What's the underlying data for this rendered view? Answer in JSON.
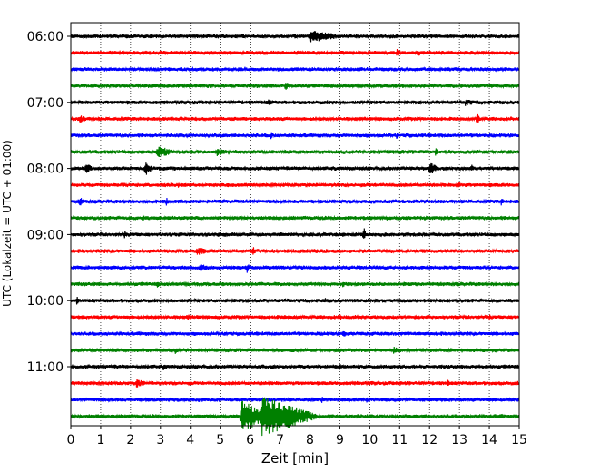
{
  "chart_data": {
    "type": "line",
    "xlabel": "Zeit  [min]",
    "ylabel": "UTC (Lokalzeit = UTC + 01:00)",
    "xlim": [
      0,
      15
    ],
    "x_ticks": [
      "0",
      "1",
      "2",
      "3",
      "4",
      "5",
      "6",
      "7",
      "8",
      "9",
      "10",
      "11",
      "12",
      "13",
      "14",
      "15"
    ],
    "y_ticks": [
      "06:00",
      "07:00",
      "08:00",
      "09:00",
      "10:00",
      "11:00"
    ],
    "grid": {
      "vertical_dotted": true
    },
    "trace_interval_minutes": 15,
    "start_time": "06:00",
    "end_time": "12:00",
    "colors_cycle": [
      "#000000",
      "#ff0000",
      "#0000ff",
      "#008000"
    ],
    "traces": [
      {
        "start": "06:00",
        "color": "#000000",
        "events": [
          {
            "t": 8.0,
            "amp": 7,
            "dur": 1.2
          }
        ]
      },
      {
        "start": "06:15",
        "color": "#ff0000",
        "events": [
          {
            "t": 1.7,
            "amp": 3,
            "dur": 0.1
          },
          {
            "t": 10.9,
            "amp": 5,
            "dur": 0.2
          },
          {
            "t": 11.6,
            "amp": 4,
            "dur": 0.2
          }
        ]
      },
      {
        "start": "06:30",
        "color": "#0000ff",
        "events": [
          {
            "t": 5.6,
            "amp": 3,
            "dur": 0.5
          }
        ]
      },
      {
        "start": "06:45",
        "color": "#008000",
        "events": [
          {
            "t": 7.2,
            "amp": 7,
            "dur": 0.1
          }
        ]
      },
      {
        "start": "07:00",
        "color": "#000000",
        "events": [
          {
            "t": 6.6,
            "amp": 4,
            "dur": 0.3
          },
          {
            "t": 13.2,
            "amp": 4,
            "dur": 0.5
          }
        ]
      },
      {
        "start": "07:15",
        "color": "#ff0000",
        "events": [
          {
            "t": 0.3,
            "amp": 5,
            "dur": 0.3
          },
          {
            "t": 13.6,
            "amp": 8,
            "dur": 0.1
          }
        ]
      },
      {
        "start": "07:30",
        "color": "#0000ff",
        "events": [
          {
            "t": 6.7,
            "amp": 5,
            "dur": 0.1
          },
          {
            "t": 10.9,
            "amp": 4,
            "dur": 0.2
          }
        ]
      },
      {
        "start": "07:45",
        "color": "#008000",
        "events": [
          {
            "t": 2.9,
            "amp": 7,
            "dur": 0.6
          },
          {
            "t": 4.9,
            "amp": 5,
            "dur": 0.5
          },
          {
            "t": 12.2,
            "amp": 5,
            "dur": 0.1
          }
        ]
      },
      {
        "start": "08:00",
        "color": "#000000",
        "events": [
          {
            "t": 0.5,
            "amp": 6,
            "dur": 0.3
          },
          {
            "t": 2.5,
            "amp": 8,
            "dur": 0.3
          },
          {
            "t": 12.0,
            "amp": 8,
            "dur": 0.3
          },
          {
            "t": 13.4,
            "amp": 5,
            "dur": 0.1
          }
        ]
      },
      {
        "start": "08:15",
        "color": "#ff0000",
        "events": [
          {
            "t": 3.6,
            "amp": 3,
            "dur": 0.3
          },
          {
            "t": 12.9,
            "amp": 4,
            "dur": 0.3
          }
        ]
      },
      {
        "start": "08:30",
        "color": "#0000ff",
        "events": [
          {
            "t": 0.3,
            "amp": 5,
            "dur": 0.2
          },
          {
            "t": 3.2,
            "amp": 5,
            "dur": 0.1
          },
          {
            "t": 14.4,
            "amp": 5,
            "dur": 0.1
          }
        ]
      },
      {
        "start": "08:45",
        "color": "#008000",
        "events": [
          {
            "t": 2.4,
            "amp": 5,
            "dur": 0.1
          },
          {
            "t": 10.6,
            "amp": 4,
            "dur": 0.1
          }
        ]
      },
      {
        "start": "09:00",
        "color": "#000000",
        "events": [
          {
            "t": 1.8,
            "amp": 5,
            "dur": 0.1
          },
          {
            "t": 9.8,
            "amp": 8,
            "dur": 0.1
          }
        ]
      },
      {
        "start": "09:15",
        "color": "#ff0000",
        "events": [
          {
            "t": 4.2,
            "amp": 5,
            "dur": 0.5
          },
          {
            "t": 6.1,
            "amp": 6,
            "dur": 0.1
          }
        ]
      },
      {
        "start": "09:30",
        "color": "#0000ff",
        "events": [
          {
            "t": 4.3,
            "amp": 4,
            "dur": 0.6
          },
          {
            "t": 5.9,
            "amp": 6,
            "dur": 0.1
          }
        ]
      },
      {
        "start": "09:45",
        "color": "#008000",
        "events": [
          {
            "t": 2.9,
            "amp": 5,
            "dur": 0.1
          },
          {
            "t": 9.1,
            "amp": 5,
            "dur": 0.1
          }
        ]
      },
      {
        "start": "10:00",
        "color": "#000000",
        "events": [
          {
            "t": 0.2,
            "amp": 5,
            "dur": 0.1
          },
          {
            "t": 8.5,
            "amp": 4,
            "dur": 0.1
          }
        ]
      },
      {
        "start": "10:15",
        "color": "#ff0000",
        "events": [
          {
            "t": 3.9,
            "amp": 5,
            "dur": 0.1
          },
          {
            "t": 9.0,
            "amp": 4,
            "dur": 0.1
          },
          {
            "t": 14.0,
            "amp": 4,
            "dur": 0.1
          }
        ]
      },
      {
        "start": "10:30",
        "color": "#0000ff",
        "events": [
          {
            "t": 9.1,
            "amp": 5,
            "dur": 0.2
          }
        ]
      },
      {
        "start": "10:45",
        "color": "#008000",
        "events": [
          {
            "t": 3.5,
            "amp": 5,
            "dur": 0.1
          },
          {
            "t": 10.8,
            "amp": 4,
            "dur": 0.4
          }
        ]
      },
      {
        "start": "11:00",
        "color": "#000000",
        "events": [
          {
            "t": 3.1,
            "amp": 4,
            "dur": 0.2
          },
          {
            "t": 9.0,
            "amp": 5,
            "dur": 0.1
          }
        ]
      },
      {
        "start": "11:15",
        "color": "#ff0000",
        "events": [
          {
            "t": 2.2,
            "amp": 5,
            "dur": 0.4
          },
          {
            "t": 12.6,
            "amp": 4,
            "dur": 0.2
          }
        ]
      },
      {
        "start": "11:30",
        "color": "#0000ff",
        "events": [
          {
            "t": 8.4,
            "amp": 4,
            "dur": 0.1
          },
          {
            "t": 9.9,
            "amp": 4,
            "dur": 0.1
          }
        ]
      },
      {
        "start": "11:45",
        "color": "#008000",
        "events": [
          {
            "t": 5.7,
            "amp": 18,
            "dur": 1.0
          },
          {
            "t": 6.4,
            "amp": 22,
            "dur": 1.8
          }
        ]
      }
    ]
  }
}
